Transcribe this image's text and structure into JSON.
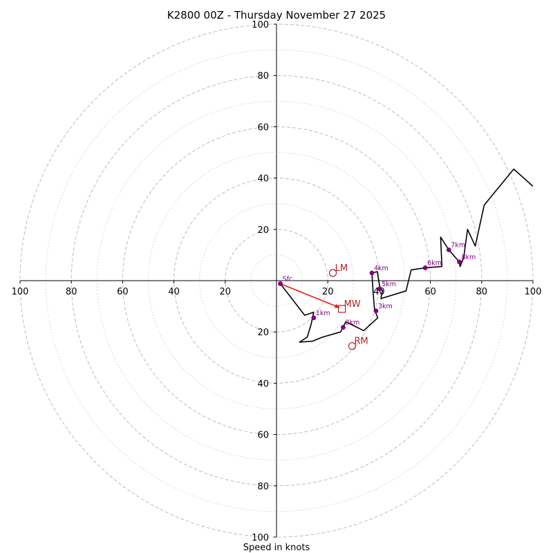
{
  "chart_data": {
    "type": "hodograph",
    "title": "K2800 00Z - Thursday November 27 2025",
    "xlabel": "Speed in knots",
    "xlim": [
      -100,
      100
    ],
    "ylim": [
      -100,
      100
    ],
    "ring_major": [
      20,
      40,
      60,
      80,
      100
    ],
    "ring_minor": [
      10,
      30,
      50,
      70,
      90
    ],
    "x_tick_labels": [
      "100",
      "80",
      "60",
      "40",
      "20",
      "20",
      "40",
      "60",
      "80",
      "100"
    ],
    "x_tick_values": [
      -100,
      -80,
      -60,
      -40,
      -20,
      20,
      40,
      60,
      80,
      100
    ],
    "y_tick_labels": [
      "100",
      "80",
      "60",
      "40",
      "20",
      "20",
      "40",
      "60",
      "80",
      "100"
    ],
    "y_tick_values": [
      100,
      80,
      60,
      40,
      20,
      -20,
      -40,
      -60,
      -80,
      -100
    ],
    "trace": [
      [
        1.5,
        -1.2
      ],
      [
        11,
        -13.5
      ],
      [
        14.5,
        -12.3
      ],
      [
        13.5,
        -17
      ],
      [
        12,
        -22
      ],
      [
        9,
        -24
      ],
      [
        14,
        -23.6
      ],
      [
        18,
        -22
      ],
      [
        25,
        -20
      ],
      [
        27,
        -16
      ],
      [
        29,
        -17
      ],
      [
        34,
        -19.5
      ],
      [
        39.5,
        -14.5
      ],
      [
        38.5,
        -12
      ],
      [
        38.2,
        -11
      ],
      [
        37.7,
        -5
      ],
      [
        37.2,
        3
      ],
      [
        39.3,
        3.5
      ],
      [
        40.2,
        -2
      ],
      [
        41.3,
        -4
      ],
      [
        40.7,
        -7
      ],
      [
        50.5,
        -4
      ],
      [
        52.5,
        4.2
      ],
      [
        58,
        5
      ],
      [
        64.5,
        5.5
      ],
      [
        64,
        17
      ],
      [
        67.2,
        12
      ],
      [
        71.3,
        7.3
      ],
      [
        71.6,
        5.5
      ],
      [
        73,
        9
      ],
      [
        74.5,
        20
      ],
      [
        77.5,
        13.5
      ],
      [
        81,
        29.5
      ],
      [
        92.5,
        43.5
      ],
      [
        100,
        36.8
      ]
    ],
    "height_markers": [
      {
        "label": "Sfc",
        "u": 1.5,
        "v": -1.2
      },
      {
        "label": "1km",
        "u": 14.5,
        "v": -14.5
      },
      {
        "label": "2km",
        "u": 26,
        "v": -18.2
      },
      {
        "label": "3km",
        "u": 38.8,
        "v": -11.8
      },
      {
        "label": "4km",
        "u": 37.2,
        "v": 3
      },
      {
        "label": "5km",
        "u": 40.2,
        "v": -3.2
      },
      {
        "label": "6km",
        "u": 58,
        "v": 5
      },
      {
        "label": "7km",
        "u": 67.2,
        "v": 12
      },
      {
        "label": "8km",
        "u": 71.3,
        "v": 7.3
      }
    ],
    "storm_motion": [
      {
        "label": "LM",
        "u": 22,
        "v": 3,
        "shape": "circle"
      },
      {
        "label": "MW",
        "u": 25.5,
        "v": -11,
        "shape": "square"
      },
      {
        "label": "RM",
        "u": 29.5,
        "v": -25.5,
        "shape": "circle"
      }
    ],
    "shear_vector": {
      "from": [
        1.5,
        -1.2
      ],
      "to": [
        25.5,
        -11
      ]
    },
    "colors": {
      "trace": "#000000",
      "markers": "#800080",
      "storm": "#b22222",
      "shear": "#ff0000",
      "rings": "#bbbbbb"
    }
  }
}
